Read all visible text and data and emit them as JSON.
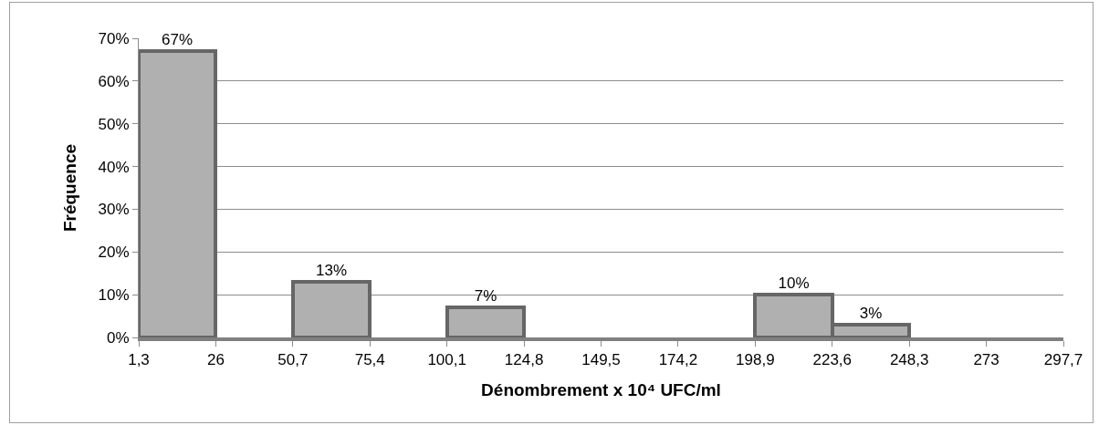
{
  "chart_data": {
    "type": "histogram",
    "xlabel": "Dénombrement x 10⁴ UFC/ml",
    "ylabel": "Fréquence",
    "bins": [
      1.3,
      26,
      50.7,
      75.4,
      100.1,
      124.8,
      149.5,
      174.2,
      198.9,
      223.6,
      248.3,
      273,
      297.7
    ],
    "values": [
      67,
      0,
      13,
      0,
      7,
      0,
      0,
      0,
      10,
      3,
      0,
      0
    ],
    "value_labels": [
      "67%",
      null,
      "13%",
      null,
      "7%",
      null,
      null,
      null,
      "10%",
      "3%",
      null,
      null
    ],
    "color": "#b0b0b0",
    "xlim": [
      1.3,
      297.7
    ],
    "xticks": [
      {
        "value": 1.3,
        "label": "1,3"
      },
      {
        "value": 26,
        "label": "26"
      },
      {
        "value": 50.7,
        "label": "50,7"
      },
      {
        "value": 75.4,
        "label": "75,4"
      },
      {
        "value": 100.1,
        "label": "100,1"
      },
      {
        "value": 124.8,
        "label": "124,8"
      },
      {
        "value": 149.5,
        "label": "149,5"
      },
      {
        "value": 174.2,
        "label": "174,2"
      },
      {
        "value": 198.9,
        "label": "198,9"
      },
      {
        "value": 223.6,
        "label": "223,6"
      },
      {
        "value": 248.3,
        "label": "248,3"
      },
      {
        "value": 273,
        "label": "273"
      },
      {
        "value": 297.7,
        "label": "297,7"
      }
    ],
    "ylim": [
      0,
      70
    ],
    "yticks": [
      {
        "value": 0,
        "label": "0%"
      },
      {
        "value": 10,
        "label": "10%"
      },
      {
        "value": 20,
        "label": "20%"
      },
      {
        "value": 30,
        "label": "30%"
      },
      {
        "value": 40,
        "label": "40%"
      },
      {
        "value": 50,
        "label": "50%"
      },
      {
        "value": 60,
        "label": "60%"
      },
      {
        "value": 70,
        "label": "70%"
      }
    ],
    "grid": "y"
  }
}
